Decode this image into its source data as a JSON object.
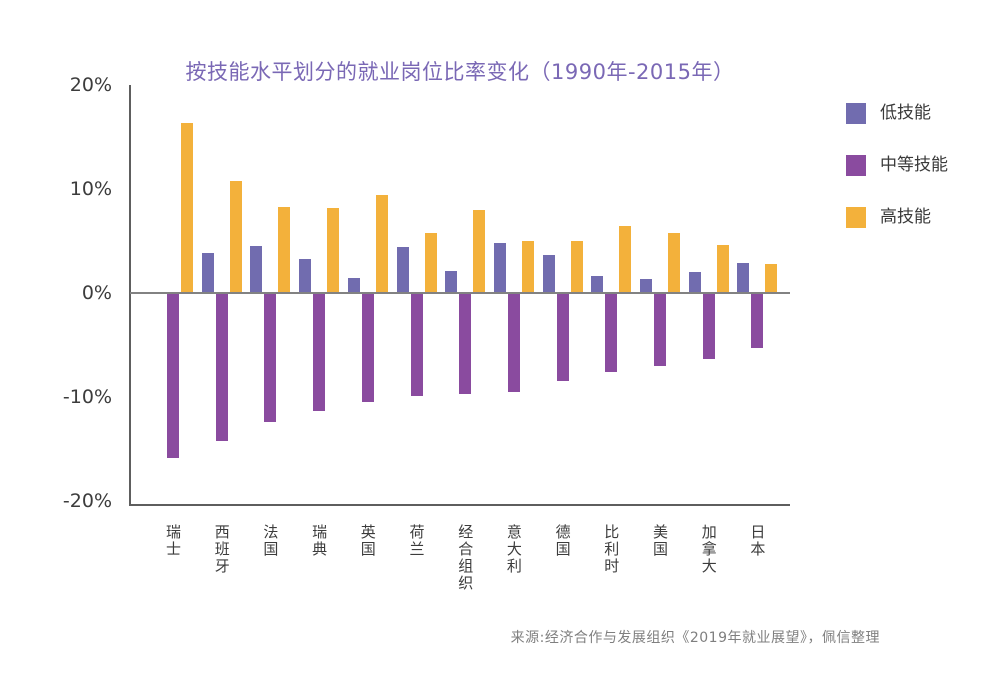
{
  "title": "按技能水平划分的就业岗位比率变化（1990年-2015年）",
  "source": "来源:经济合作与发展组织《2019年就业展望》，佩信整理",
  "colors": {
    "low_skill": "#716CAF",
    "middle_skill": "#8A4B9F",
    "high_skill": "#F3B13B",
    "title_text": "#7A68B5",
    "axis_text": "#3C3C3C",
    "source_text": "#7F7F7F"
  },
  "legend": {
    "position": "right",
    "items": [
      {
        "label": "低技能",
        "color": "#716CAF"
      },
      {
        "label": "中等技能",
        "color": "#8A4B9F"
      },
      {
        "label": "高技能",
        "color": "#F3B13B"
      }
    ]
  },
  "chart_data": {
    "type": "bar",
    "title": "按技能水平划分的就业岗位比率变化（1990年-2015年）",
    "xlabel": "",
    "ylabel": "",
    "ylim": [
      -20,
      20
    ],
    "grid": false,
    "legend_position": "right",
    "yticks": [
      {
        "value": 20,
        "label": "20%"
      },
      {
        "value": 10,
        "label": "10%"
      },
      {
        "value": 0,
        "label": "0%"
      },
      {
        "value": -10,
        "label": "-10%"
      },
      {
        "value": -20,
        "label": "-20%"
      }
    ],
    "categories": [
      "瑞士",
      "西班牙",
      "法国",
      "瑞典",
      "英国",
      "荷兰",
      "经合组织",
      "意大利",
      "德国",
      "比利时",
      "美国",
      "加拿大",
      "日本"
    ],
    "series": [
      {
        "name": "低技能",
        "color": "#716CAF",
        "values": [
          0,
          3.8,
          4.5,
          3.3,
          1.4,
          4.4,
          2.1,
          4.8,
          3.7,
          1.6,
          1.3,
          2.0,
          2.9
        ]
      },
      {
        "name": "中等技能",
        "color": "#8A4B9F",
        "values": [
          -15.9,
          -14.2,
          -12.4,
          -11.3,
          -10.5,
          -9.9,
          -9.7,
          -9.5,
          -8.5,
          -7.6,
          -7.0,
          -6.3,
          -5.3
        ]
      },
      {
        "name": "高技能",
        "color": "#F3B13B",
        "values": [
          16.3,
          10.8,
          8.3,
          8.2,
          9.4,
          5.8,
          8.0,
          5.0,
          5.0,
          6.4,
          5.8,
          4.6,
          2.8
        ]
      }
    ]
  }
}
